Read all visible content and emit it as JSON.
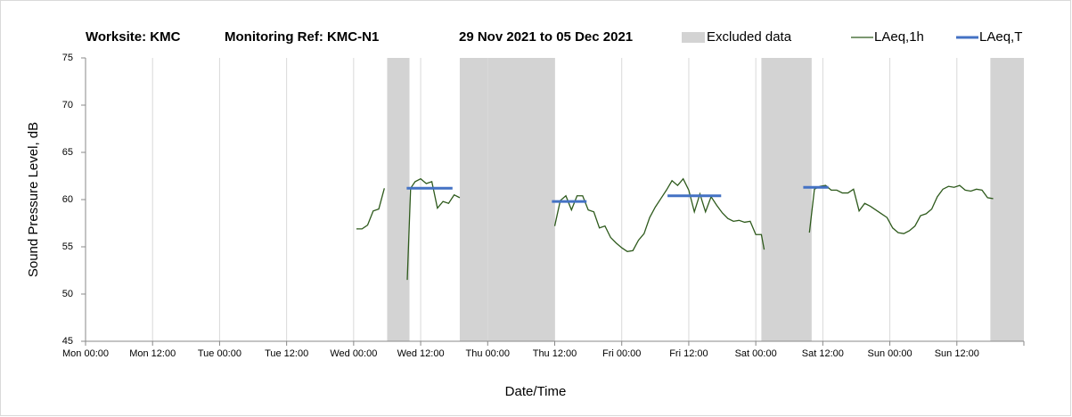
{
  "chart_data": {
    "type": "line",
    "title_parts": [
      "Worksite: KMC",
      "Monitoring Ref: KMC-N1",
      "29 Nov 2021 to 05 Dec 2021"
    ],
    "xlabel": "Date/Time",
    "ylabel": "Sound Pressure Level, dB",
    "xlim": [
      0,
      168
    ],
    "ylim": [
      45,
      75
    ],
    "yticks": [
      45,
      50,
      55,
      60,
      65,
      70,
      75
    ],
    "xticks": [
      {
        "value": 0,
        "label": "Mon 00:00"
      },
      {
        "value": 12,
        "label": "Mon 12:00"
      },
      {
        "value": 24,
        "label": "Tue 00:00"
      },
      {
        "value": 36,
        "label": "Tue 12:00"
      },
      {
        "value": 48,
        "label": "Wed 00:00"
      },
      {
        "value": 60,
        "label": "Wed 12:00"
      },
      {
        "value": 72,
        "label": "Thu 00:00"
      },
      {
        "value": 84,
        "label": "Thu 12:00"
      },
      {
        "value": 96,
        "label": "Fri 00:00"
      },
      {
        "value": 108,
        "label": "Fri 12:00"
      },
      {
        "value": 120,
        "label": "Sat 00:00"
      },
      {
        "value": 132,
        "label": "Sat 12:00"
      },
      {
        "value": 144,
        "label": "Sun 00:00"
      },
      {
        "value": 156,
        "label": "Sun 12:00"
      }
    ],
    "grid": "x",
    "excluded": {
      "name": "Excluded data",
      "color": "#d3d3d3",
      "ranges": [
        [
          54,
          58
        ],
        [
          67,
          84
        ],
        [
          121,
          130
        ],
        [
          162,
          168
        ]
      ]
    },
    "series": [
      {
        "name": "LAeq,1h",
        "color": "#2e5a1c",
        "x": [
          48.5,
          49.5,
          50.5,
          51.5,
          52.5,
          53.5,
          55,
          57.6,
          58.2,
          59,
          60,
          61,
          62,
          63,
          64,
          65,
          66,
          67,
          75,
          84,
          85,
          86,
          87,
          88,
          89,
          90,
          91,
          92,
          93,
          94,
          95,
          96,
          97,
          98,
          99,
          100,
          101,
          102,
          103,
          104,
          105,
          106,
          107,
          108,
          109,
          110,
          111,
          112,
          113,
          114,
          115,
          116,
          117,
          118,
          119,
          120,
          121,
          121.5,
          125,
          129.6,
          130.5,
          131.5,
          132.5,
          133.5,
          134.5,
          135.5,
          136.5,
          137.5,
          138.5,
          139.5,
          140.5,
          141.5,
          142.5,
          143.5,
          144.5,
          145.5,
          146.5,
          147.5,
          148.5,
          149.5,
          150.5,
          151.5,
          152.5,
          153.5,
          154.5,
          155.5,
          156.5,
          157.5,
          158.5,
          159.5,
          160.5,
          161.5,
          162.5
        ],
        "values": [
          56.9,
          56.9,
          57.3,
          58.8,
          59.0,
          61.2,
          null,
          51.5,
          61.2,
          61.9,
          62.2,
          61.7,
          61.9,
          59.1,
          59.8,
          59.6,
          60.5,
          60.2,
          null,
          57.2,
          59.9,
          60.4,
          58.9,
          60.4,
          60.4,
          58.9,
          58.7,
          57.0,
          57.2,
          56.0,
          55.4,
          54.9,
          54.5,
          54.6,
          55.7,
          56.4,
          58.1,
          59.2,
          60.1,
          61.0,
          62.0,
          61.5,
          62.2,
          61.0,
          58.7,
          60.6,
          58.7,
          60.3,
          59.4,
          58.6,
          58.0,
          57.7,
          57.8,
          57.6,
          57.7,
          56.3,
          56.3,
          54.7,
          null,
          56.5,
          61.1,
          61.4,
          61.5,
          61.0,
          61.0,
          60.7,
          60.7,
          61.1,
          58.8,
          59.6,
          59.3,
          58.9,
          58.5,
          58.1,
          57.0,
          56.5,
          56.4,
          56.7,
          57.2,
          58.3,
          58.5,
          59.0,
          60.3,
          61.1,
          61.4,
          61.3,
          61.5,
          61.0,
          60.9,
          61.1,
          61.0,
          60.2,
          60.1
        ]
      },
      {
        "name": "LAeq,T",
        "color": "#4472c4",
        "segments": [
          {
            "x": [
              57.5,
              65.7
            ],
            "value": 61.2
          },
          {
            "x": [
              83.5,
              89.7
            ],
            "value": 59.8
          },
          {
            "x": [
              104.2,
              113.8
            ],
            "value": 60.4
          },
          {
            "x": [
              128.5,
              133
            ],
            "value": 61.3
          }
        ]
      }
    ]
  }
}
